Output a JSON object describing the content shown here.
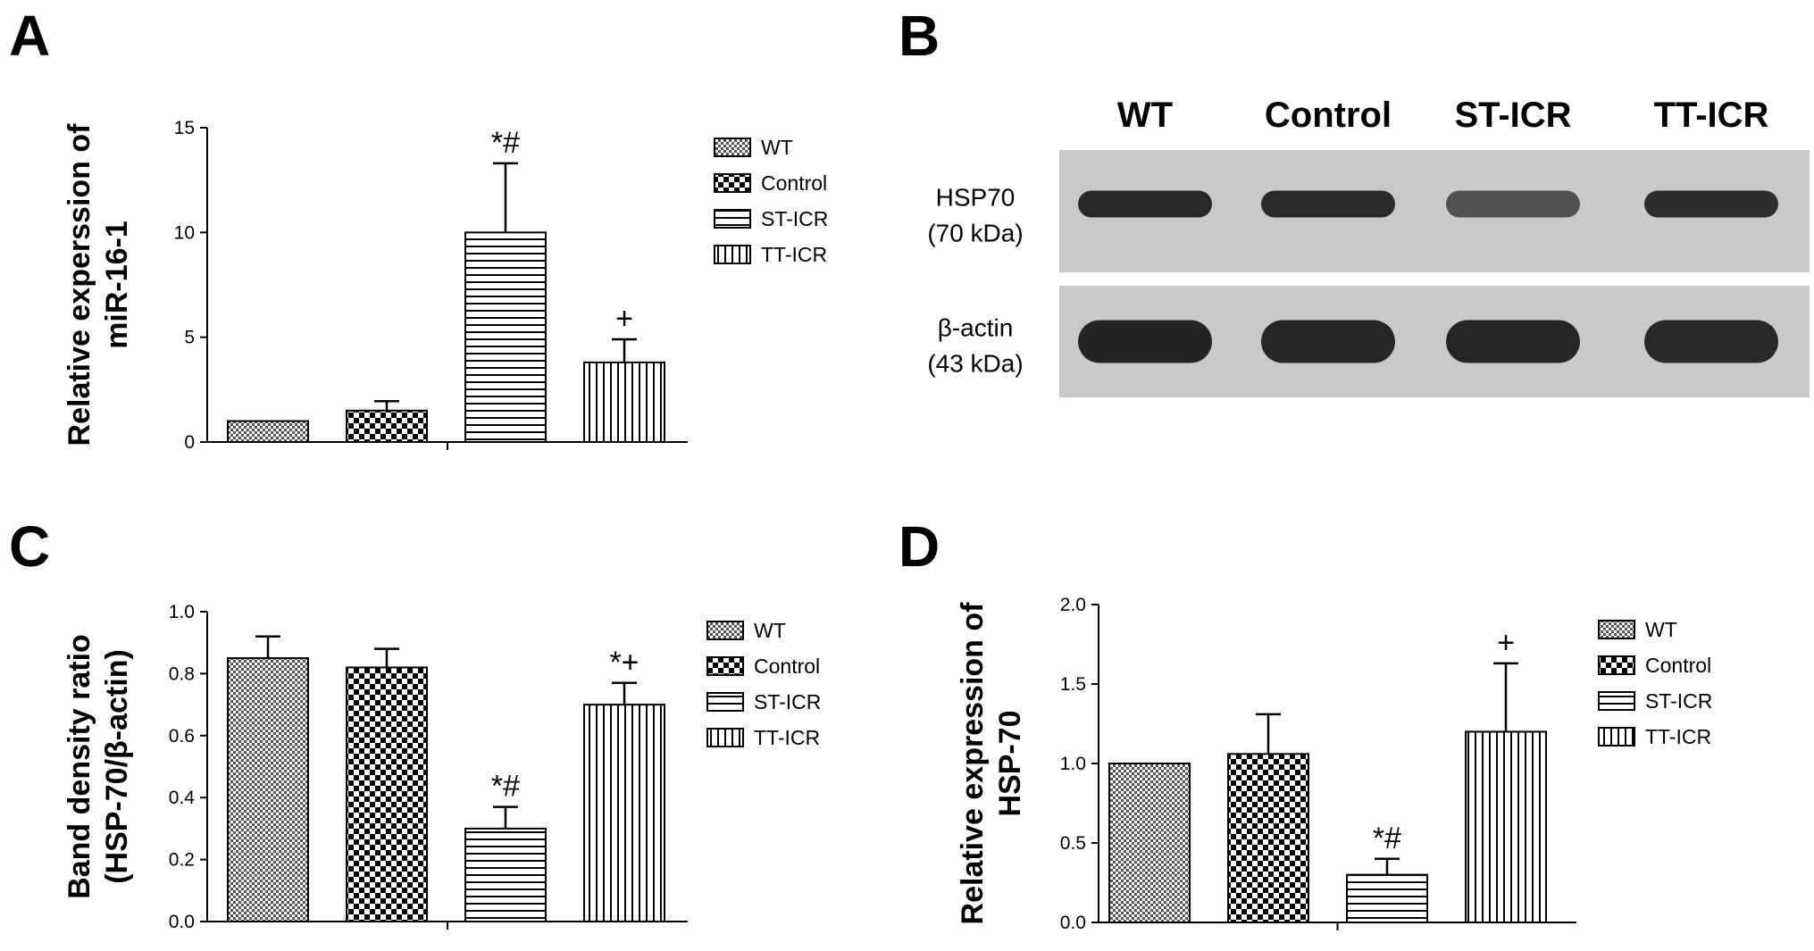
{
  "panels": {
    "a": "A",
    "b": "B",
    "c": "C",
    "d": "D"
  },
  "blot": {
    "lanes": [
      "WT",
      "Control",
      "ST-ICR",
      "TT-ICR"
    ],
    "rows": [
      {
        "label_line1": "HSP70",
        "label_line2": "(70 kDa)",
        "intensity": [
          0.9,
          0.88,
          0.55,
          0.85
        ]
      },
      {
        "label_line1": "β-actin",
        "label_line2": "(43 kDa)",
        "intensity": [
          0.95,
          0.92,
          0.93,
          0.9
        ]
      }
    ]
  },
  "chart_data": [
    {
      "id": "A",
      "type": "bar",
      "categories": [
        "WT",
        "Control",
        "ST-ICR",
        "TT-ICR"
      ],
      "values": [
        1.0,
        1.5,
        10.0,
        3.8
      ],
      "errors": [
        0.0,
        0.45,
        3.3,
        1.1
      ],
      "annotations": [
        "",
        "",
        "*#",
        "+"
      ],
      "ylabel_line1": "Relative experssion of",
      "ylabel_line2": "miR-16-1",
      "ylim": [
        0,
        15
      ],
      "yticks": [
        "0",
        "5",
        "10",
        "15"
      ],
      "legend": [
        "WT",
        "Control",
        "ST-ICR",
        "TT-ICR"
      ],
      "legend_position": "right"
    },
    {
      "id": "C",
      "type": "bar",
      "categories": [
        "WT",
        "Control",
        "ST-ICR",
        "TT-ICR"
      ],
      "values": [
        0.85,
        0.82,
        0.3,
        0.7
      ],
      "errors": [
        0.07,
        0.06,
        0.07,
        0.07
      ],
      "annotations": [
        "",
        "",
        "*#",
        "*+"
      ],
      "ylabel_line1": "Band density ratio",
      "ylabel_line2": "(HSP-70/β-actin)",
      "ylim": [
        0,
        1.0
      ],
      "yticks": [
        "0.0",
        "0.2",
        "0.4",
        "0.6",
        "0.8",
        "1.0"
      ],
      "legend": [
        "WT",
        "Control",
        "ST-ICR",
        "TT-ICR"
      ],
      "legend_position": "right"
    },
    {
      "id": "D",
      "type": "bar",
      "categories": [
        "WT",
        "Control",
        "ST-ICR",
        "TT-ICR"
      ],
      "values": [
        1.0,
        1.06,
        0.3,
        1.2
      ],
      "errors": [
        0.0,
        0.25,
        0.1,
        0.43
      ],
      "annotations": [
        "",
        "",
        "*#",
        "+"
      ],
      "ylabel_line1": "Relative expression of",
      "ylabel_line2": "HSP-70",
      "ylim": [
        0,
        2.0
      ],
      "yticks": [
        "0.0",
        "0.5",
        "1.0",
        "1.5",
        "2.0"
      ],
      "legend": [
        "WT",
        "Control",
        "ST-ICR",
        "TT-ICR"
      ],
      "legend_position": "right"
    }
  ]
}
